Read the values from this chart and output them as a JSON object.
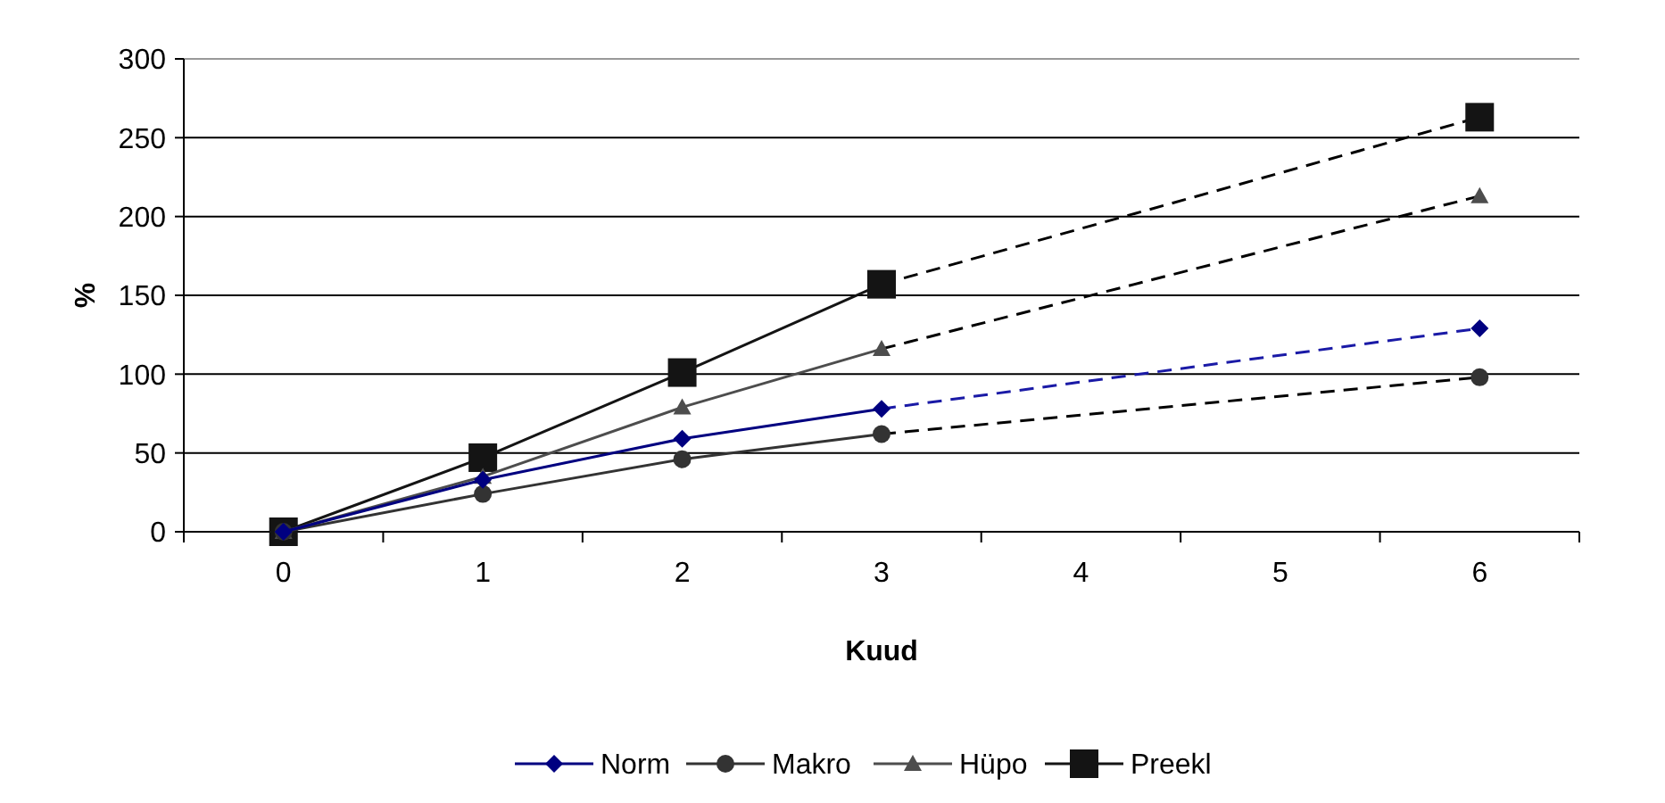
{
  "chart_data": {
    "type": "line",
    "xlabel": "Kuud",
    "ylabel": "%",
    "categories": [
      "0",
      "1",
      "2",
      "3",
      "4",
      "5",
      "6"
    ],
    "ylim": [
      0,
      300
    ],
    "yticks": [
      0,
      50,
      100,
      150,
      200,
      250,
      300
    ],
    "grid": "y",
    "legend": "bottom",
    "series": [
      {
        "name": "Norm",
        "color": "#000080",
        "marker": "diamond",
        "line_style": "solid",
        "values": [
          0,
          33,
          59,
          78,
          null,
          null,
          129
        ]
      },
      {
        "name": "Makro",
        "color": "#333333",
        "marker": "circle",
        "line_style": "solid",
        "values": [
          0,
          24,
          46,
          62,
          null,
          null,
          98
        ]
      },
      {
        "name": "Hüpo",
        "color": "#4d4d4d",
        "marker": "triangle",
        "line_style": "solid",
        "values": [
          0,
          35,
          79,
          116,
          null,
          null,
          213
        ]
      },
      {
        "name": "Preekl",
        "color": "#141414",
        "marker": "square",
        "line_style": "solid",
        "values": [
          0,
          47,
          101,
          157,
          null,
          null,
          263
        ]
      },
      {
        "color": "#1a1aa6",
        "marker": "none",
        "line_style": "dashed",
        "x": [
          "3",
          "6"
        ],
        "values": [
          78,
          129
        ]
      },
      {
        "color": "#000000",
        "marker": "none",
        "line_style": "dashed",
        "x": [
          "3",
          "6"
        ],
        "values": [
          62,
          98
        ]
      },
      {
        "color": "#000000",
        "marker": "none",
        "line_style": "dashed",
        "x": [
          "3",
          "6"
        ],
        "values": [
          116,
          213
        ]
      },
      {
        "color": "#000000",
        "marker": "none",
        "line_style": "dashed",
        "x": [
          "3",
          "6"
        ],
        "values": [
          157,
          263
        ]
      }
    ]
  }
}
